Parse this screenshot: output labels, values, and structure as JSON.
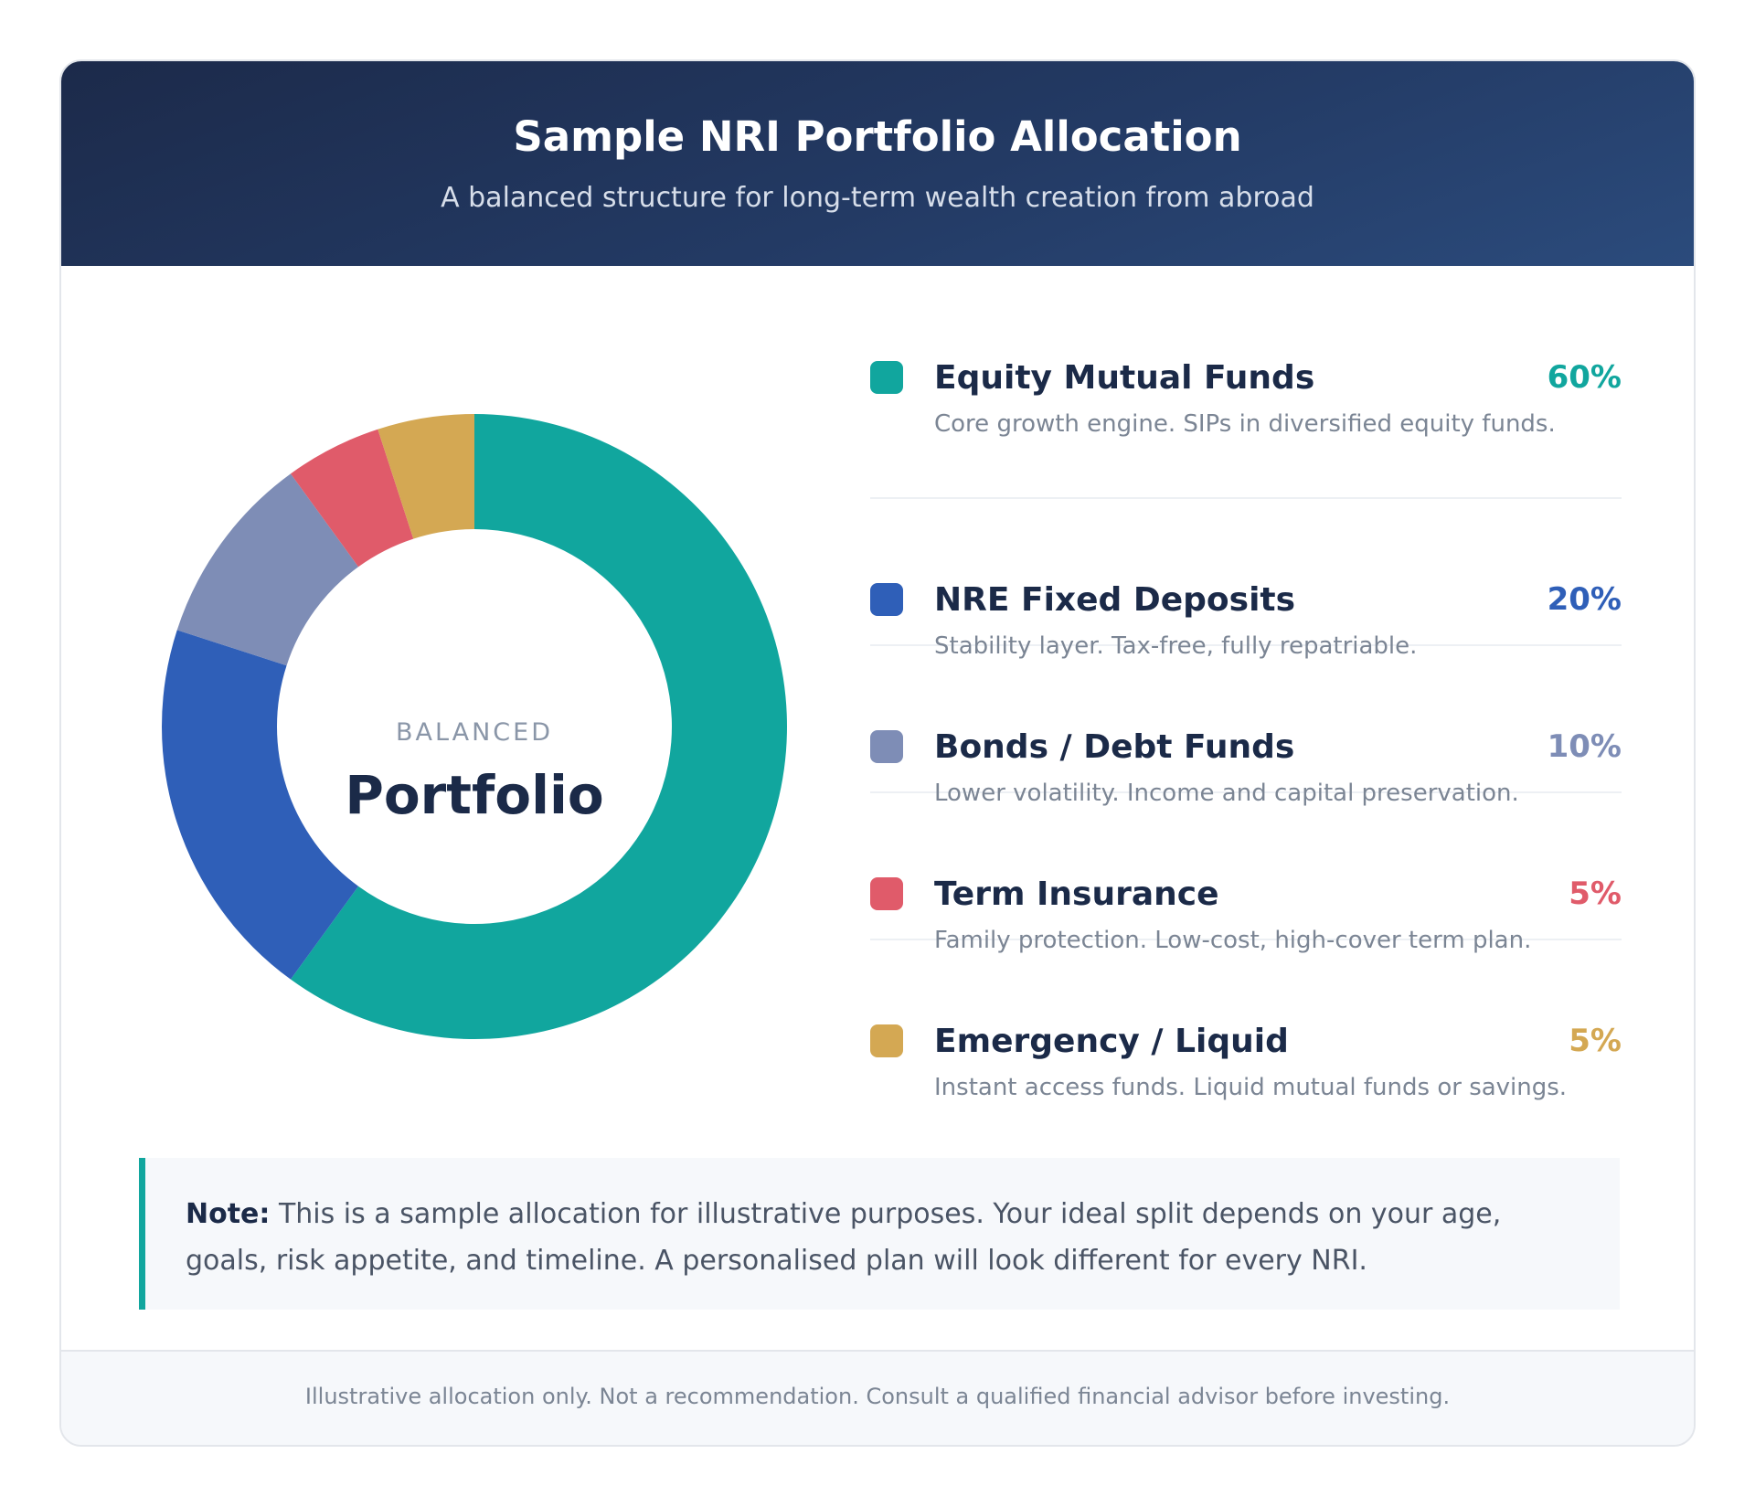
{
  "header": {
    "title": "Sample NRI Portfolio Allocation",
    "subtitle": "A balanced structure for long-term wealth creation from abroad"
  },
  "center": {
    "label_small": "BALANCED",
    "label_big": "Portfolio"
  },
  "chart_data": {
    "type": "pie",
    "donut": true,
    "categories": [
      "Equity Mutual Funds",
      "NRE Fixed Deposits",
      "Bonds / Debt Funds",
      "Term Insurance",
      "Emergency / Liquid"
    ],
    "values": [
      60,
      20,
      10,
      5,
      5
    ],
    "colors": [
      "#11a69e",
      "#2f5fb8",
      "#7e8db6",
      "#e05b6a",
      "#d4a853"
    ]
  },
  "legend": [
    {
      "name": "Equity Mutual Funds",
      "pct": "60%",
      "desc": "Core growth engine. SIPs in diversified equity funds.",
      "color": "#11a69e"
    },
    {
      "name": "NRE Fixed Deposits",
      "pct": "20%",
      "desc": "Stability layer. Tax-free, fully repatriable.",
      "color": "#2f5fb8"
    },
    {
      "name": "Bonds / Debt Funds",
      "pct": "10%",
      "desc": "Lower volatility. Income and capital preservation.",
      "color": "#7e8db6"
    },
    {
      "name": "Term Insurance",
      "pct": "5%",
      "desc": "Family protection. Low-cost, high-cover term plan.",
      "color": "#e05b6a"
    },
    {
      "name": "Emergency / Liquid",
      "pct": "5%",
      "desc": "Instant access funds. Liquid mutual funds or savings.",
      "color": "#d4a853"
    }
  ],
  "note": {
    "label": "Note:",
    "text": " This is a sample allocation for illustrative purposes. Your ideal split depends on your age, goals, risk appetite, and timeline. A personalised plan will look different for every NRI."
  },
  "footer": "Illustrative allocation only. Not a recommendation. Consult a qualified financial advisor before investing."
}
